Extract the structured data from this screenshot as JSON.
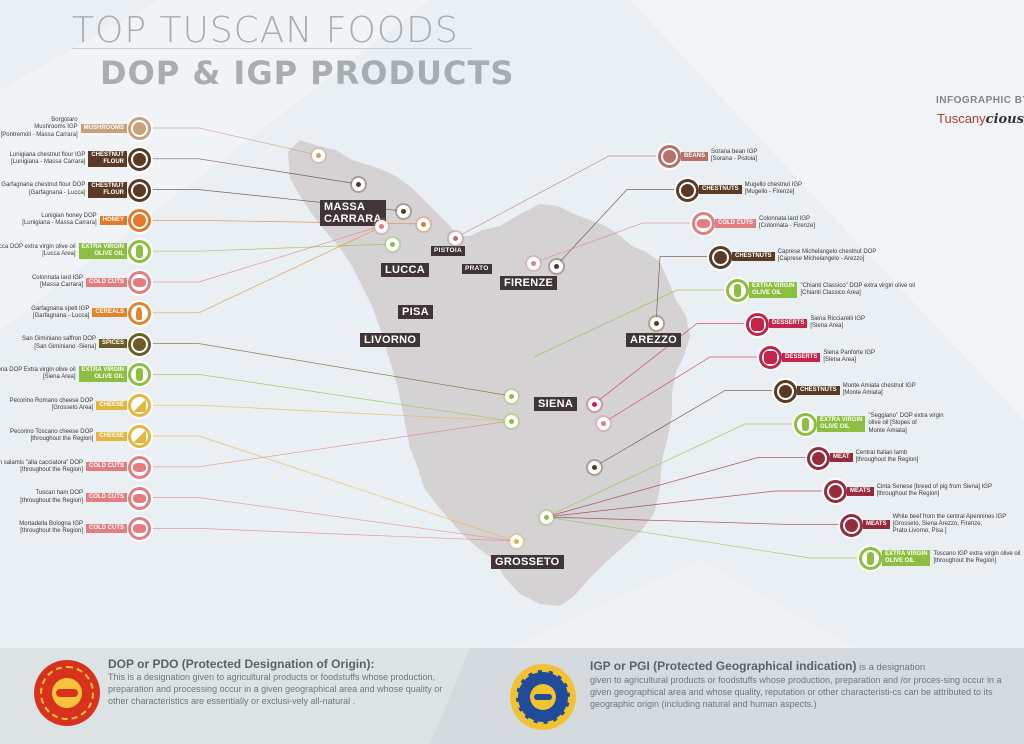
{
  "header": {
    "title_line1": "TOP TUSCAN FOODS",
    "title_line2": "DOP & IGP PRODUCTS",
    "byline": "INFOGRAPHIC BY",
    "brand_part1": "Tuscany",
    "brand_part2": "cious"
  },
  "colors": {
    "mushrooms": "#c9a07c",
    "chestnut": "#5b3a23",
    "honey": "#e37a2b",
    "olive": "#8cbf3f",
    "cold_cuts": "#e57c80",
    "cereals": "#e2852d",
    "spices": "#6e5b26",
    "cheese": "#e5b63d",
    "beans": "#b86f6a",
    "desserts": "#c5234a",
    "meat": "#972a3b",
    "city_box": "#3f3536",
    "map": "#d5d2d3"
  },
  "left_products": [
    {
      "label": [
        "Borgotaro",
        "Mushrooms IGP",
        "[Pontremoli - Massa Carrara]"
      ],
      "category": [
        "MUSHROOMS"
      ],
      "icon": "mushroom-icon",
      "color": "#c9a07c"
    },
    {
      "label": [
        "Lunigiana chestnut flour IGP",
        "[Lunigiana - Massa Carrara]"
      ],
      "category": [
        "CHESTNUT",
        "FLOUR"
      ],
      "icon": "chestnut-icon",
      "color": "#5b3a23"
    },
    {
      "label": [
        "Garfagnana chestnut flour DOP",
        "[Garfagnana - Lucca]"
      ],
      "category": [
        "CHESTNUT",
        "FLOUR"
      ],
      "icon": "chestnut-icon",
      "color": "#5b3a23"
    },
    {
      "label": [
        "Lunigian honey DOP",
        "[Lunigiana - Massa Carrara]"
      ],
      "category": [
        "HONEY"
      ],
      "icon": "honey-dipper-icon",
      "color": "#e37a2b"
    },
    {
      "label": [
        "Lucca DOP extra virgin olive oil",
        "[Lucca Area]"
      ],
      "category": [
        "EXTRA VIRGIN",
        "OLIVE OIL"
      ],
      "icon": "olive-oil-bottle-icon",
      "color": "#8cbf3f"
    },
    {
      "label": [
        "Colonnata lard IGP",
        "[Massa Carrara]"
      ],
      "category": [
        "COLD CUTS"
      ],
      "icon": "cold-cuts-icon",
      "color": "#e57c80"
    },
    {
      "label": [
        "Garfagnana spelt IGP",
        "[Garfagnana - Lucca]"
      ],
      "category": [
        "CEREALS"
      ],
      "icon": "wheat-icon",
      "color": "#e2852d"
    },
    {
      "label": [
        "San Giminiano saffron DOP",
        "[San Giminiano -Siena]"
      ],
      "category": [
        "SPICES"
      ],
      "icon": "spice-jar-icon",
      "color": "#6e5b26"
    },
    {
      "label": [
        "Terre di Siena DOP Extra virgin olive oil",
        "[Siena Area]"
      ],
      "category": [
        "EXTRA VIRGIN",
        "OLIVE OIL"
      ],
      "icon": "olive-oil-bottle-icon",
      "color": "#8cbf3f"
    },
    {
      "label": [
        "Pecorino Romano cheese DOP",
        "[Grosseto Area]"
      ],
      "category": [
        "CHEESE"
      ],
      "icon": "cheese-icon",
      "color": "#e5b63d"
    },
    {
      "label": [
        "Pecorino Toscano cheese DOP",
        "[throughout the Region]"
      ],
      "category": [
        "CHEESE"
      ],
      "icon": "cheese-icon",
      "color": "#e5b63d"
    },
    {
      "label": [
        "Small Italian salamis \"alla cacciatora\" DOP",
        "[throughout the Region]"
      ],
      "category": [
        "COLD CUTS"
      ],
      "icon": "cold-cuts-icon",
      "color": "#e57c80"
    },
    {
      "label": [
        "Tuscan ham DOP",
        "[throughout the Region]"
      ],
      "category": [
        "COLD CUTS"
      ],
      "icon": "cold-cuts-icon",
      "color": "#e57c80"
    },
    {
      "label": [
        "Mortadella Bologna IGP",
        "[throughout the Region]"
      ],
      "category": [
        "COLD CUTS"
      ],
      "icon": "cold-cuts-icon",
      "color": "#e57c80"
    }
  ],
  "right_products": [
    {
      "label": [
        "Sorana bean IGP",
        "[Sorana - Pistoia]"
      ],
      "category": [
        "BEANS"
      ],
      "icon": "beans-icon",
      "color": "#b86f6a"
    },
    {
      "label": [
        "Mugello chestnut IGP",
        "[Mugello - Firenze]"
      ],
      "category": [
        "CHESTNUTS"
      ],
      "icon": "chestnut-icon",
      "color": "#5b3a23"
    },
    {
      "label": [
        "Colonnata lard IGP",
        "[Colonnata - Firenze]"
      ],
      "category": [
        "COLD CUTS"
      ],
      "icon": "cold-cuts-icon",
      "color": "#e57c80"
    },
    {
      "label": [
        "Caprese Michelangelo chestnut DOP",
        "[Caprese Michelangelo - Arezzo]"
      ],
      "category": [
        "CHESTNUTS"
      ],
      "icon": "chestnut-icon",
      "color": "#5b3a23"
    },
    {
      "label": [
        "\"Chianti Classico\" DOP extra virgin olive oil",
        "[Chianti Classico Area]"
      ],
      "category": [
        "EXTRA VIRGIN",
        "OLIVE OIL"
      ],
      "icon": "olive-oil-bottle-icon",
      "color": "#8cbf3f"
    },
    {
      "label": [
        "Siena Ricciarelli IGP",
        "[Siena Area]"
      ],
      "category": [
        "DESSERTS"
      ],
      "icon": "dessert-icon",
      "color": "#c5234a"
    },
    {
      "label": [
        "Siena Panforte IGP",
        "[Siena Area]"
      ],
      "category": [
        "DESSERTS"
      ],
      "icon": "dessert-icon",
      "color": "#c5234a"
    },
    {
      "label": [
        "Monte Amiata chestnut IGP",
        "[Monte Amiata]"
      ],
      "category": [
        "CHESTNUTS"
      ],
      "icon": "chestnut-icon",
      "color": "#5b3a23"
    },
    {
      "label": [
        "\"Seggiano\" DOP extra virgin",
        "olive oil [Slopes of",
        "Monte Amiata]"
      ],
      "category": [
        "EXTRA VIRGIN",
        "OLIVE OIL"
      ],
      "icon": "olive-oil-bottle-icon",
      "color": "#8cbf3f"
    },
    {
      "label": [
        "Central Italian lamb",
        "[throughout the Region]"
      ],
      "category": [
        "MEAT"
      ],
      "icon": "meat-icon",
      "color": "#972a3b"
    },
    {
      "label": [
        "Cinta Senese [breed of pig from Siena] IGP",
        "[throughout the Region]"
      ],
      "category": [
        "MEATS"
      ],
      "icon": "meat-icon",
      "color": "#972a3b"
    },
    {
      "label": [
        "White beef from the central Apennines IGP",
        "[Grosseto, Siena Arezzo, Firenze,",
        "Prato Livorno, Pisa ]"
      ],
      "category": [
        "MEATS"
      ],
      "icon": "meat-icon",
      "color": "#972a3b"
    },
    {
      "label": [
        "Toscano IGP extra virgin olive oil",
        "[throughout the Region]"
      ],
      "category": [
        "EXTRA VIRGIN",
        "OLIVE OIL"
      ],
      "icon": "olive-oil-bottle-icon",
      "color": "#8cbf3f"
    }
  ],
  "cities": [
    {
      "name": [
        "MASSA",
        "CARRARA"
      ]
    },
    {
      "name": [
        "LUCCA"
      ]
    },
    {
      "name": [
        "PISTOIA"
      ]
    },
    {
      "name": [
        "PRATO"
      ]
    },
    {
      "name": [
        "FIRENZE"
      ]
    },
    {
      "name": [
        "PISA"
      ]
    },
    {
      "name": [
        "LIVORNO"
      ]
    },
    {
      "name": [
        "AREZZO"
      ]
    },
    {
      "name": [
        "SIENA"
      ]
    },
    {
      "name": [
        "GROSSETO"
      ]
    }
  ],
  "footer": {
    "dop": {
      "heading": "DOP or PDO (Protected Designation of Origin):",
      "text": "This is a designation given to agricultural products or foodstuffs whose production, preparation and processing occur in a given geographical area and whose quality or other characteristics are essentially or exclusi-vely all-natural .",
      "seal_icon": "dop-seal-icon"
    },
    "igp": {
      "heading": "IGP or PGI (Protected Geographical indication)",
      "text_inline": " is a designation",
      "text": "given to agricultural products or foodstuffs whose production, preparation and /or proces-sing occur in a given geographical area and whose quality, reputation or other characteristi-cs can be attributed to its geographic origin (including natural and human aspects.)",
      "seal_icon": "igp-seal-icon"
    }
  }
}
